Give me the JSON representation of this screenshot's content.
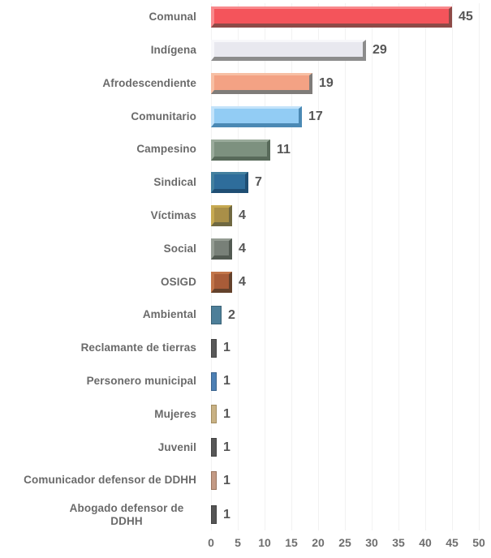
{
  "chart_data": {
    "type": "bar",
    "orientation": "horizontal",
    "title": "",
    "xlabel": "",
    "ylabel": "",
    "categories": [
      "Comunal",
      "Indígena",
      "Afrodescendiente",
      "Comunitario",
      "Campesino",
      "Sindical",
      "Víctimas",
      "Social",
      "OSIGD",
      "Ambiental",
      "Reclamante de tierras",
      "Personero municipal",
      "Mujeres",
      "Juvenil",
      "Comunicador defensor de DDHH",
      "Abogado defensor de\nDDHH"
    ],
    "values": [
      45,
      29,
      19,
      17,
      11,
      7,
      4,
      4,
      4,
      2,
      1,
      1,
      1,
      1,
      1,
      1
    ],
    "xlim": [
      0,
      50
    ],
    "x_ticks": [
      "0",
      "5",
      "10",
      "15",
      "20",
      "25",
      "30",
      "35",
      "40",
      "45",
      "50"
    ],
    "grid": "faint-vertical-gridlines",
    "value_labels_shown": true,
    "bar_style": "3d-bevel",
    "label_color": "#6a6a6a",
    "value_color": "#565656",
    "tick_color": "#6e6e6e",
    "bar_colors": [
      {
        "fill": "#f4545b",
        "light": "#f8898c",
        "dark": "#8e4a47"
      },
      {
        "fill": "#e8e8ef",
        "light": "#f7f7fa",
        "dark": "#8c8c8c"
      },
      {
        "fill": "#f3a284",
        "light": "#f7bfa4",
        "dark": "#7f7c79"
      },
      {
        "fill": "#92ccf4",
        "light": "#c3e3fa",
        "dark": "#4b89b4"
      },
      {
        "fill": "#7d917f",
        "light": "#9aab9b",
        "dark": "#586a5a"
      },
      {
        "fill": "#2e6d9b",
        "light": "#43809f",
        "dark": "#1f4e73"
      },
      {
        "fill": "#a98f48",
        "light": "#c6a951",
        "dark": "#6f6841"
      },
      {
        "fill": "#788078",
        "light": "#949c93",
        "dark": "#525a52"
      },
      {
        "fill": "#a85c38",
        "light": "#c17549",
        "dark": "#63412b"
      },
      {
        "fill": "#4d7f99",
        "light": "#5f8ea6",
        "dark": "#3a6276"
      },
      {
        "fill": "#595959",
        "light": "#6b6b6b",
        "dark": "#454545"
      },
      {
        "fill": "#4d80b4",
        "light": "#6293c0",
        "dark": "#3a638d"
      },
      {
        "fill": "#c8b184",
        "light": "#d6c49e",
        "dark": "#a38d60"
      },
      {
        "fill": "#575757",
        "light": "#696969",
        "dark": "#434343"
      },
      {
        "fill": "#c39a85",
        "light": "#d2b09d",
        "dark": "#99755f"
      },
      {
        "fill": "#555555",
        "light": "#676767",
        "dark": "#414141"
      }
    ]
  }
}
